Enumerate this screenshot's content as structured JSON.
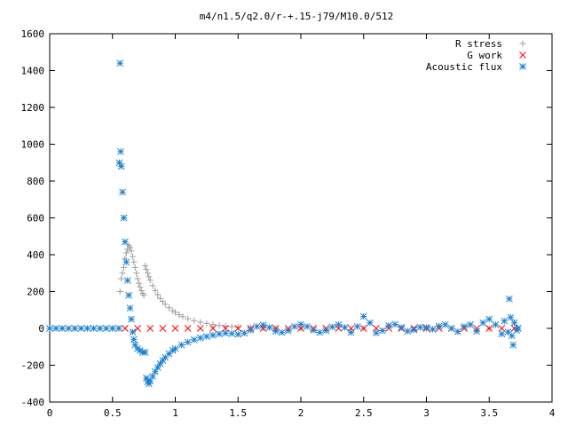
{
  "chart_data": {
    "type": "scatter",
    "title": "m4/n1.5/q2.0/r-+.15-j79/M10.0/512",
    "xlabel": "",
    "ylabel": "",
    "xlim": [
      0,
      4
    ],
    "ylim": [
      -400,
      1600
    ],
    "xticks": [
      "0",
      "0.5",
      "1",
      "1.5",
      "2",
      "2.5",
      "3",
      "3.5",
      "4"
    ],
    "yticks": [
      "-400",
      "-200",
      "0",
      "200",
      "400",
      "600",
      "800",
      "1000",
      "1200",
      "1400",
      "1600"
    ],
    "grid": false,
    "legend_position": "top-right",
    "series": [
      {
        "name": "R stress",
        "marker": "plus",
        "color": "#a0a0a0",
        "points": [
          [
            0.0,
            0
          ],
          [
            0.1,
            0
          ],
          [
            0.2,
            0
          ],
          [
            0.3,
            0
          ],
          [
            0.4,
            0
          ],
          [
            0.5,
            0
          ],
          [
            0.55,
            0
          ],
          [
            0.56,
            200
          ],
          [
            0.57,
            270
          ],
          [
            0.58,
            300
          ],
          [
            0.59,
            330
          ],
          [
            0.6,
            380
          ],
          [
            0.61,
            410
          ],
          [
            0.62,
            430
          ],
          [
            0.63,
            450
          ],
          [
            0.64,
            440
          ],
          [
            0.65,
            420
          ],
          [
            0.66,
            390
          ],
          [
            0.67,
            360
          ],
          [
            0.68,
            330
          ],
          [
            0.69,
            300
          ],
          [
            0.7,
            270
          ],
          [
            0.71,
            245
          ],
          [
            0.72,
            225
          ],
          [
            0.73,
            205
          ],
          [
            0.74,
            190
          ],
          [
            0.75,
            180
          ],
          [
            0.76,
            340
          ],
          [
            0.77,
            320
          ],
          [
            0.78,
            300
          ],
          [
            0.79,
            280
          ],
          [
            0.8,
            262
          ],
          [
            0.82,
            232
          ],
          [
            0.84,
            206
          ],
          [
            0.86,
            183
          ],
          [
            0.88,
            163
          ],
          [
            0.9,
            146
          ],
          [
            0.92,
            131
          ],
          [
            0.95,
            112
          ],
          [
            0.98,
            96
          ],
          [
            1.0,
            87
          ],
          [
            1.03,
            74
          ],
          [
            1.06,
            64
          ],
          [
            1.1,
            52
          ],
          [
            1.15,
            42
          ],
          [
            1.2,
            34
          ],
          [
            1.25,
            27
          ],
          [
            1.3,
            21
          ],
          [
            1.35,
            16
          ],
          [
            1.4,
            12
          ],
          [
            1.45,
            9
          ],
          [
            1.5,
            7
          ],
          [
            1.6,
            4
          ],
          [
            1.7,
            2
          ],
          [
            1.8,
            1
          ],
          [
            2.0,
            0
          ],
          [
            2.5,
            0
          ],
          [
            3.0,
            0
          ],
          [
            3.5,
            0
          ],
          [
            3.73,
            0
          ]
        ]
      },
      {
        "name": "G work",
        "marker": "cross",
        "color": "#ff0000",
        "points": [
          [
            0.6,
            0
          ],
          [
            0.7,
            0
          ],
          [
            0.8,
            0
          ],
          [
            0.9,
            0
          ],
          [
            1.0,
            0
          ],
          [
            1.1,
            0
          ],
          [
            1.2,
            0
          ],
          [
            1.3,
            0
          ],
          [
            1.4,
            0
          ],
          [
            1.5,
            0
          ],
          [
            1.6,
            0
          ],
          [
            1.7,
            0
          ],
          [
            1.8,
            0
          ],
          [
            1.9,
            0
          ],
          [
            2.0,
            0
          ],
          [
            2.1,
            0
          ],
          [
            2.2,
            0
          ],
          [
            2.3,
            0
          ],
          [
            2.4,
            0
          ],
          [
            2.5,
            0
          ],
          [
            2.6,
            0
          ],
          [
            2.7,
            0
          ],
          [
            2.8,
            0
          ],
          [
            2.9,
            0
          ],
          [
            3.0,
            0
          ],
          [
            3.1,
            0
          ],
          [
            3.2,
            0
          ],
          [
            3.3,
            0
          ],
          [
            3.4,
            0
          ],
          [
            3.5,
            0
          ],
          [
            3.6,
            0
          ],
          [
            3.7,
            0
          ]
        ]
      },
      {
        "name": "Acoustic flux",
        "marker": "star",
        "color": "#1a80d0",
        "points": [
          [
            0.0,
            0
          ],
          [
            0.05,
            0
          ],
          [
            0.1,
            0
          ],
          [
            0.15,
            0
          ],
          [
            0.2,
            0
          ],
          [
            0.25,
            0
          ],
          [
            0.3,
            0
          ],
          [
            0.35,
            0
          ],
          [
            0.4,
            0
          ],
          [
            0.45,
            0
          ],
          [
            0.5,
            0
          ],
          [
            0.55,
            0
          ],
          [
            0.56,
            1440
          ],
          [
            0.555,
            900
          ],
          [
            0.565,
            960
          ],
          [
            0.57,
            880
          ],
          [
            0.58,
            740
          ],
          [
            0.59,
            600
          ],
          [
            0.6,
            470
          ],
          [
            0.61,
            360
          ],
          [
            0.62,
            260
          ],
          [
            0.63,
            180
          ],
          [
            0.64,
            110
          ],
          [
            0.65,
            50
          ],
          [
            0.66,
            -20
          ],
          [
            0.67,
            -60
          ],
          [
            0.68,
            -90
          ],
          [
            0.7,
            -110
          ],
          [
            0.72,
            -120
          ],
          [
            0.74,
            -130
          ],
          [
            0.76,
            -130
          ],
          [
            0.77,
            -270
          ],
          [
            0.78,
            -290
          ],
          [
            0.79,
            -300
          ],
          [
            0.8,
            -285
          ],
          [
            0.82,
            -260
          ],
          [
            0.84,
            -235
          ],
          [
            0.86,
            -212
          ],
          [
            0.88,
            -192
          ],
          [
            0.9,
            -174
          ],
          [
            0.92,
            -158
          ],
          [
            0.95,
            -138
          ],
          [
            0.98,
            -120
          ],
          [
            1.0,
            -110
          ],
          [
            1.05,
            -90
          ],
          [
            1.1,
            -75
          ],
          [
            1.15,
            -62
          ],
          [
            1.2,
            -52
          ],
          [
            1.25,
            -44
          ],
          [
            1.3,
            -37
          ],
          [
            1.35,
            -30
          ],
          [
            1.4,
            -26
          ],
          [
            1.45,
            -28
          ],
          [
            1.5,
            -32
          ],
          [
            1.55,
            -26
          ],
          [
            1.6,
            -10
          ],
          [
            1.65,
            10
          ],
          [
            1.7,
            18
          ],
          [
            1.75,
            5
          ],
          [
            1.8,
            -15
          ],
          [
            1.85,
            -22
          ],
          [
            1.9,
            -12
          ],
          [
            1.95,
            10
          ],
          [
            2.0,
            22
          ],
          [
            2.05,
            10
          ],
          [
            2.1,
            -10
          ],
          [
            2.15,
            -22
          ],
          [
            2.2,
            -12
          ],
          [
            2.25,
            8
          ],
          [
            2.3,
            20
          ],
          [
            2.35,
            5
          ],
          [
            2.4,
            -22
          ],
          [
            2.45,
            10
          ],
          [
            2.5,
            65
          ],
          [
            2.55,
            30
          ],
          [
            2.6,
            -25
          ],
          [
            2.65,
            -12
          ],
          [
            2.7,
            15
          ],
          [
            2.75,
            22
          ],
          [
            2.8,
            5
          ],
          [
            2.85,
            -15
          ],
          [
            2.9,
            -8
          ],
          [
            2.95,
            6
          ],
          [
            3.0,
            5
          ],
          [
            3.05,
            -5
          ],
          [
            3.1,
            12
          ],
          [
            3.15,
            20
          ],
          [
            3.2,
            0
          ],
          [
            3.25,
            -18
          ],
          [
            3.3,
            10
          ],
          [
            3.35,
            20
          ],
          [
            3.4,
            -15
          ],
          [
            3.45,
            30
          ],
          [
            3.5,
            50
          ],
          [
            3.55,
            20
          ],
          [
            3.6,
            -30
          ],
          [
            3.62,
            40
          ],
          [
            3.65,
            -20
          ],
          [
            3.66,
            160
          ],
          [
            3.67,
            60
          ],
          [
            3.68,
            -40
          ],
          [
            3.69,
            -90
          ],
          [
            3.7,
            30
          ],
          [
            3.72,
            -10
          ],
          [
            3.73,
            0
          ]
        ]
      }
    ]
  }
}
